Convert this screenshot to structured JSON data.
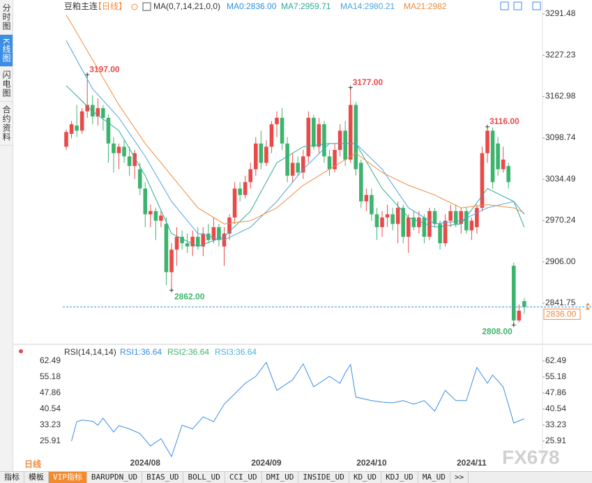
{
  "sidebar_tabs": [
    "分时图",
    "K线图",
    "闪电图",
    "合约资料"
  ],
  "header": {
    "symbol": "豆粕主连",
    "period": "【日线】",
    "ma_params": "MA(0,7,14,21,0,0)",
    "ma0": "MA0:2836.00",
    "ma0_color": "#2f8fe0"
  },
  "chart_data": [
    {
      "type": "candlestick",
      "categories": [
        null,
        null,
        null,
        null,
        null,
        null,
        null,
        null,
        null,
        null,
        null,
        null,
        null,
        null,
        null,
        "2024/08",
        null,
        null,
        null,
        null,
        null,
        null,
        null,
        null,
        null,
        null,
        null,
        null,
        null,
        null,
        null,
        null,
        null,
        null,
        null,
        null,
        null,
        null,
        "2024/09",
        null,
        null,
        null,
        null,
        null,
        null,
        null,
        null,
        null,
        null,
        null,
        null,
        null,
        null,
        null,
        null,
        null,
        null,
        null,
        "2024/10",
        null,
        null,
        null,
        null,
        null,
        null,
        null,
        null,
        null,
        null,
        null,
        null,
        null,
        null,
        null,
        null,
        null,
        null,
        "2024/11",
        null,
        null,
        null,
        null,
        null,
        null,
        null,
        null,
        null,
        null
      ],
      "ohlc": [
        [
          3085,
          3112,
          3080,
          3108
        ],
        [
          3105,
          3125,
          3098,
          3120
        ],
        [
          3118,
          3150,
          3100,
          3110
        ],
        [
          3110,
          3145,
          3105,
          3140
        ],
        [
          3140,
          3197,
          3130,
          3150
        ],
        [
          3150,
          3165,
          3120,
          3132
        ],
        [
          3132,
          3160,
          3118,
          3145
        ],
        [
          3145,
          3150,
          3110,
          3130
        ],
        [
          3130,
          3135,
          3060,
          3090
        ],
        [
          3090,
          3100,
          3045,
          3075
        ],
        [
          3075,
          3090,
          3050,
          3085
        ],
        [
          3085,
          3095,
          3060,
          3070
        ],
        [
          3070,
          3085,
          3040,
          3055
        ],
        [
          3055,
          3080,
          3035,
          3075
        ],
        [
          3050,
          3060,
          3010,
          3020
        ],
        [
          3020,
          3030,
          2960,
          2980
        ],
        [
          2980,
          2995,
          2960,
          2985
        ],
        [
          2985,
          2990,
          2940,
          2970
        ],
        [
          2970,
          2985,
          2960,
          2978
        ],
        [
          2965,
          2975,
          2870,
          2890
        ],
        [
          2890,
          2935,
          2862,
          2925
        ],
        [
          2925,
          2960,
          2900,
          2945
        ],
        [
          2945,
          2955,
          2925,
          2935
        ],
        [
          2935,
          2950,
          2920,
          2930
        ],
        [
          2930,
          2955,
          2915,
          2945
        ],
        [
          2945,
          2960,
          2925,
          2930
        ],
        [
          2930,
          2960,
          2915,
          2950
        ],
        [
          2950,
          2965,
          2935,
          2940
        ],
        [
          2940,
          2975,
          2935,
          2960
        ],
        [
          2960,
          2965,
          2930,
          2940
        ],
        [
          2930,
          2960,
          2900,
          2950
        ],
        [
          2950,
          2980,
          2940,
          2975
        ],
        [
          2975,
          3030,
          2965,
          3020
        ],
        [
          3020,
          3030,
          3000,
          3010
        ],
        [
          3010,
          3040,
          3005,
          3030
        ],
        [
          3030,
          3060,
          3020,
          3050
        ],
        [
          3050,
          3100,
          3040,
          3090
        ],
        [
          3090,
          3110,
          3050,
          3060
        ],
        [
          3060,
          3095,
          3055,
          3085
        ],
        [
          3085,
          3125,
          3075,
          3120
        ],
        [
          3120,
          3140,
          3100,
          3130
        ],
        [
          3130,
          3145,
          3080,
          3090
        ],
        [
          3090,
          3100,
          3030,
          3040
        ],
        [
          3040,
          3075,
          3030,
          3060
        ],
        [
          3060,
          3070,
          3040,
          3045
        ],
        [
          3045,
          3080,
          3035,
          3070
        ],
        [
          3070,
          3140,
          3060,
          3130
        ],
        [
          3130,
          3135,
          3080,
          3085
        ],
        [
          3085,
          3130,
          3075,
          3120
        ],
        [
          3120,
          3125,
          3060,
          3070
        ],
        [
          3070,
          3080,
          3040,
          3050
        ],
        [
          3050,
          3090,
          3045,
          3080
        ],
        [
          3080,
          3120,
          3070,
          3110
        ],
        [
          3110,
          3125,
          3055,
          3065
        ],
        [
          3065,
          3177,
          3060,
          3150
        ],
        [
          3150,
          3155,
          3040,
          3050
        ],
        [
          3060,
          3065,
          2990,
          3000
        ],
        [
          3000,
          3020,
          2985,
          3010
        ],
        [
          3010,
          3020,
          2970,
          2980
        ],
        [
          2980,
          2990,
          2940,
          2960
        ],
        [
          2960,
          2985,
          2945,
          2975
        ],
        [
          2975,
          2995,
          2960,
          2980
        ],
        [
          2980,
          2990,
          2955,
          2965
        ],
        [
          2965,
          3000,
          2935,
          2990
        ],
        [
          2990,
          2995,
          2935,
          2945
        ],
        [
          2945,
          2980,
          2920,
          2975
        ],
        [
          2975,
          2985,
          2955,
          2960
        ],
        [
          2960,
          2985,
          2950,
          2975
        ],
        [
          2975,
          2980,
          2935,
          2945
        ],
        [
          2945,
          2990,
          2940,
          2985
        ],
        [
          2985,
          2990,
          2960,
          2965
        ],
        [
          2965,
          2970,
          2925,
          2935
        ],
        [
          2935,
          2980,
          2930,
          2970
        ],
        [
          2970,
          2995,
          2960,
          2985
        ],
        [
          2985,
          2995,
          2960,
          2965
        ],
        [
          2965,
          2990,
          2950,
          2985
        ],
        [
          2985,
          2990,
          2950,
          2955
        ],
        [
          2955,
          2975,
          2940,
          2970
        ],
        [
          2960,
          2995,
          2950,
          2990
        ],
        [
          2990,
          3085,
          2985,
          3075
        ],
        [
          3075,
          3116,
          3060,
          3110
        ],
        [
          3110,
          3115,
          3020,
          3030
        ],
        [
          3090,
          3100,
          3040,
          3050
        ],
        [
          3050,
          3085,
          3045,
          3065
        ],
        [
          3055,
          3060,
          3020,
          3030
        ],
        [
          2900,
          2905,
          2808,
          2815
        ],
        [
          2815,
          2840,
          2812,
          2830
        ],
        [
          2845,
          2850,
          2825,
          2836
        ]
      ],
      "up_color": "#e84a4a",
      "down_color": "#3db46d",
      "ylim": [
        2782.2,
        3307.7
      ],
      "yticks": [
        3291.48,
        3227.23,
        3162.98,
        3098.74,
        3034.49,
        2970.24,
        {
          "value": 2906,
          "label": "2906.00"
        },
        2841.75
      ],
      "series": [
        {
          "name": "MA7:2959.71",
          "color": "#2bab96",
          "x": [
            0,
            5,
            10,
            15,
            20,
            25,
            30,
            35,
            40,
            45,
            50,
            55,
            60,
            65,
            70,
            75,
            80,
            85,
            87
          ],
          "values": [
            3180,
            3140,
            3110,
            3040,
            2950,
            2930,
            2945,
            2985,
            3060,
            3085,
            3090,
            3090,
            3020,
            2975,
            2960,
            2965,
            3020,
            3000,
            2960
          ]
        },
        {
          "name": "MA14:2980.21",
          "color": "#4aa3df",
          "x": [
            0,
            5,
            10,
            15,
            20,
            25,
            30,
            35,
            40,
            45,
            50,
            55,
            60,
            65,
            70,
            75,
            80,
            85,
            87
          ],
          "values": [
            3250,
            3175,
            3130,
            3070,
            3000,
            2950,
            2940,
            2960,
            3000,
            3050,
            3090,
            3090,
            3050,
            2990,
            2965,
            2970,
            2990,
            3000,
            2980
          ]
        },
        {
          "name": "MA21:2982",
          "color": "#f08a3c",
          "x": [
            0,
            5,
            10,
            15,
            20,
            25,
            30,
            35,
            40,
            45,
            50,
            55,
            60,
            65,
            70,
            75,
            80,
            85,
            87
          ],
          "values": [
            3290,
            3220,
            3150,
            3090,
            3040,
            2990,
            2965,
            2970,
            2990,
            3025,
            3050,
            3075,
            3045,
            3025,
            3010,
            2990,
            2995,
            2990,
            2982
          ]
        }
      ],
      "extremes": [
        {
          "value": 3197,
          "label": "3197.00"
        },
        {
          "value": 3177,
          "label": "3177.00"
        },
        {
          "value": 3116,
          "label": "3116.00"
        },
        {
          "value": 2862,
          "label": "2862.00"
        },
        {
          "value": 2808,
          "label": "2808.00"
        }
      ],
      "last_price": {
        "value": 2836,
        "label": "2836.00"
      }
    },
    {
      "type": "line",
      "title": "RSI(14,14,14)",
      "legend": [
        {
          "name": "RSI1:36.64",
          "color": "#2f8fe0"
        },
        {
          "name": "RSI2:36.64",
          "color": "#3db46d"
        },
        {
          "name": "RSI3:36.64",
          "color": "#4ab0e0"
        }
      ],
      "color": "#3a8ee6",
      "x": [
        1,
        2,
        3,
        5,
        6,
        7,
        9,
        10,
        12,
        14,
        16,
        18,
        20,
        22,
        24,
        26,
        28,
        30,
        32,
        34,
        36,
        38,
        40,
        43,
        45,
        47,
        50,
        52,
        53,
        54,
        55,
        58,
        60,
        62,
        64,
        66,
        68,
        70,
        72,
        74,
        76,
        78,
        80,
        81,
        83,
        85,
        87
      ],
      "values": [
        25.9,
        34.8,
        35.5,
        35.0,
        33.2,
        36.4,
        30.1,
        33.0,
        31.5,
        29.4,
        23.7,
        27.0,
        18.9,
        33.2,
        31.5,
        37.0,
        34.8,
        42.8,
        47.5,
        52.3,
        55.5,
        61.9,
        49.1,
        53.9,
        61.2,
        50.7,
        55.5,
        52.3,
        57.1,
        60.9,
        46.0,
        44.4,
        43.7,
        43.4,
        44.4,
        42.8,
        44.4,
        39.6,
        49.1,
        44.4,
        44.4,
        59.6,
        52.3,
        56.1,
        50.7,
        34.2,
        36.1
      ],
      "ylim": [
        17.3,
        64.4
      ],
      "yticks": [
        62.49,
        55.18,
        47.86,
        40.54,
        33.23,
        25.91
      ]
    }
  ],
  "period_label": "日线",
  "watermark": "FX678",
  "bottom_tabs": [
    "指标",
    "模板",
    "VIP指标",
    "BARUPDN_UD",
    "BIAS_UD",
    "BOLL_UD",
    "CCI_UD",
    "DMI_UD",
    "INSIDE_UD",
    "KD_UD",
    "KDJ_UD",
    "MA_UD",
    ">>"
  ]
}
